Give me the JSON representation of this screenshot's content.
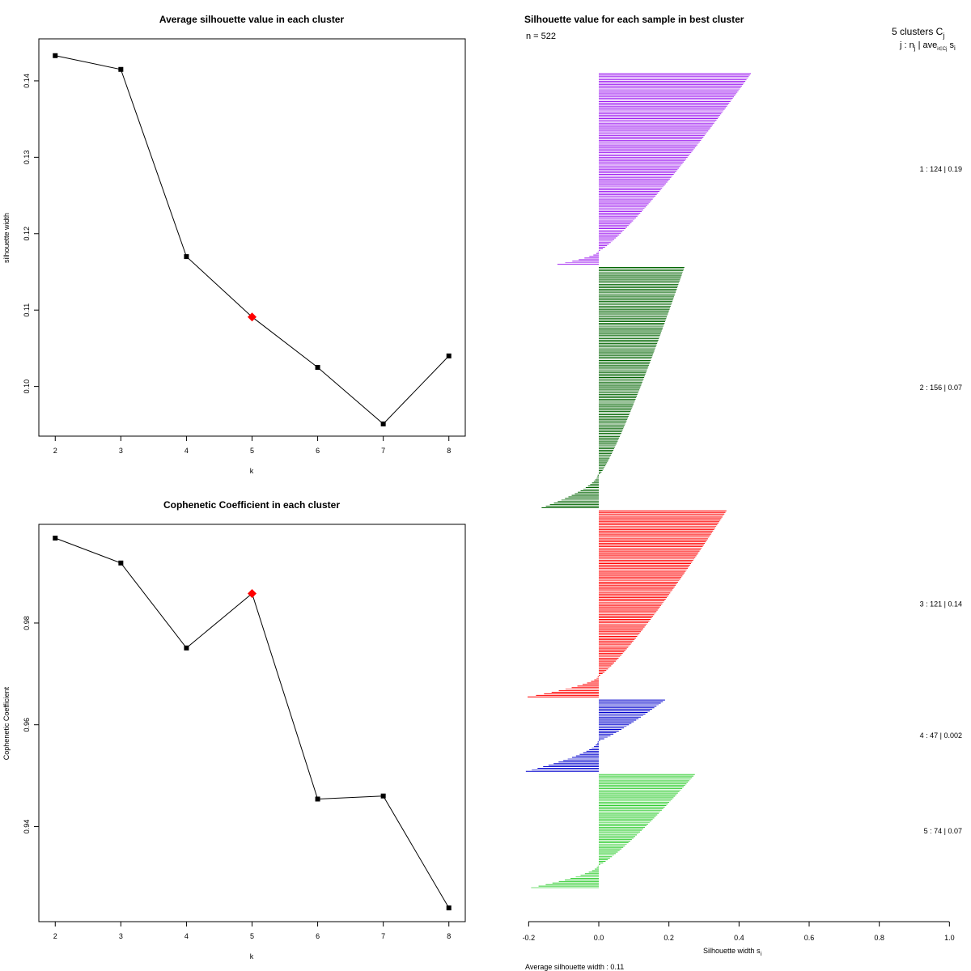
{
  "chart_data": [
    {
      "type": "line",
      "title": "Average silhouette value in each cluster",
      "xlabel": "k",
      "ylabel": "silhouette width",
      "x": [
        2,
        3,
        4,
        5,
        6,
        7,
        8
      ],
      "values": [
        0.1433,
        0.1415,
        0.117,
        0.1091,
        0.1025,
        0.0951,
        0.104
      ],
      "highlight_x": 5,
      "highlight_color": "#ff0000",
      "xlim": [
        1.75,
        8.25
      ],
      "ylim": [
        0.0935,
        0.1455
      ],
      "xticks": [
        "2",
        "3",
        "4",
        "5",
        "6",
        "7",
        "8"
      ],
      "yticks": [
        0.1,
        0.11,
        0.12,
        0.13,
        0.14
      ],
      "yticklabels": [
        "0.10",
        "0.11",
        "0.12",
        "0.13",
        "0.14"
      ]
    },
    {
      "type": "line",
      "title": "Cophenetic Coefficient in each cluster",
      "xlabel": "k",
      "ylabel": "Cophenetic Coefficient",
      "x": [
        2,
        3,
        4,
        5,
        6,
        7,
        8
      ],
      "values": [
        0.9967,
        0.9918,
        0.9751,
        0.9858,
        0.9454,
        0.946,
        0.924
      ],
      "highlight_x": 5,
      "highlight_color": "#ff0000",
      "xlim": [
        1.75,
        8.25
      ],
      "ylim": [
        0.9213,
        0.9994
      ],
      "xticks": [
        "2",
        "3",
        "4",
        "5",
        "6",
        "7",
        "8"
      ],
      "yticks": [
        0.94,
        0.96,
        0.98
      ],
      "yticklabels": [
        "0.94",
        "0.96",
        "0.98"
      ]
    },
    {
      "type": "bar",
      "orientation": "horizontal",
      "title": "Silhouette value for each sample in best cluster",
      "n_label": "n = 522",
      "xlabel_main": "Silhouette width s",
      "xlabel_sub": "i",
      "xlim": [
        -0.2,
        1.0
      ],
      "xticks": [
        "-0.2",
        "0.0",
        "0.2",
        "0.4",
        "0.6",
        "0.8",
        "1.0"
      ],
      "legend_head1_main": "5  clusters  C",
      "legend_head1_sub": "j",
      "legend_head2_main": "j :  n",
      "legend_head2_sub1": "j",
      "legend_head2_mid": " | ave",
      "legend_head2_sub2": "i∈Cj",
      "legend_head2_tail": " s",
      "legend_head2_sub3": "i",
      "avg_label": "Average silhouette width :  0.11",
      "clusters": [
        {
          "j": 1,
          "n": 124,
          "n_positive": 115,
          "avg": "0.19",
          "color": "#a020f0",
          "max": 0.43,
          "min": -0.115,
          "label": "1 :  124  |  0.19"
        },
        {
          "j": 2,
          "n": 156,
          "n_positive": 134,
          "avg": "0.07",
          "color": "#006400",
          "max": 0.24,
          "min": -0.16,
          "label": "2 :  156  |  0.07"
        },
        {
          "j": 3,
          "n": 121,
          "n_positive": 107,
          "avg": "0.14",
          "color": "#ff0000",
          "max": 0.36,
          "min": -0.2,
          "label": "3 :  121  |  0.14"
        },
        {
          "j": 4,
          "n": 47,
          "n_positive": 27,
          "avg": "0.002",
          "color": "#0000cd",
          "max": 0.185,
          "min": -0.205,
          "label": "4 :  47  |  0.002"
        },
        {
          "j": 5,
          "n": 74,
          "n_positive": 59,
          "avg": "0.07",
          "color": "#32cd32",
          "max": 0.27,
          "min": -0.19,
          "label": "5 :  74  |  0.07"
        }
      ]
    }
  ]
}
